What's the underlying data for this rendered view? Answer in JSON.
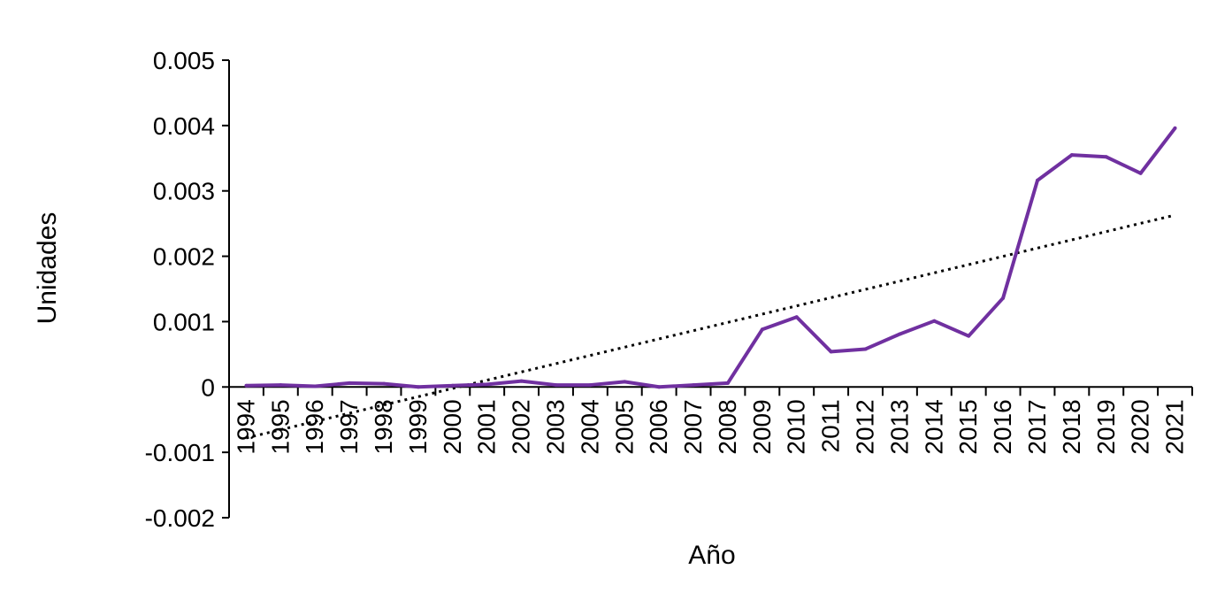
{
  "chart_data": {
    "type": "line",
    "title": "",
    "xlabel": "Año",
    "ylabel": "Unidades",
    "categories": [
      "1994",
      "1995",
      "1996",
      "1997",
      "1998",
      "1999",
      "2000",
      "2001",
      "2002",
      "2003",
      "2004",
      "2005",
      "2006",
      "2007",
      "2008",
      "2009",
      "2010",
      "2011",
      "2012",
      "2013",
      "2014",
      "2015",
      "2016",
      "2017",
      "2018",
      "2019",
      "2020",
      "2021"
    ],
    "series": [
      {
        "values": [
          2e-05,
          3e-05,
          1e-05,
          6e-05,
          5e-05,
          0.0,
          2e-05,
          4e-05,
          9e-05,
          3e-05,
          3e-05,
          8e-05,
          0.0,
          3e-05,
          6e-05,
          0.00088,
          0.00107,
          0.00054,
          0.00058,
          0.00081,
          0.00101,
          0.00078,
          0.00136,
          0.00316,
          0.00355,
          0.00352,
          0.00327,
          0.00396
        ],
        "color": "#7030a0"
      }
    ],
    "trendline": {
      "type": "linear",
      "style": "dotted",
      "color": "#000000",
      "start_value": -0.00078,
      "end_value": 0.00263
    },
    "ylim": [
      -0.002,
      0.005
    ],
    "yticks": [
      "-0.002",
      "-0.001",
      "0",
      "0.001",
      "0.002",
      "0.003",
      "0.004",
      "0.005"
    ],
    "grid": false,
    "legend": "none"
  }
}
